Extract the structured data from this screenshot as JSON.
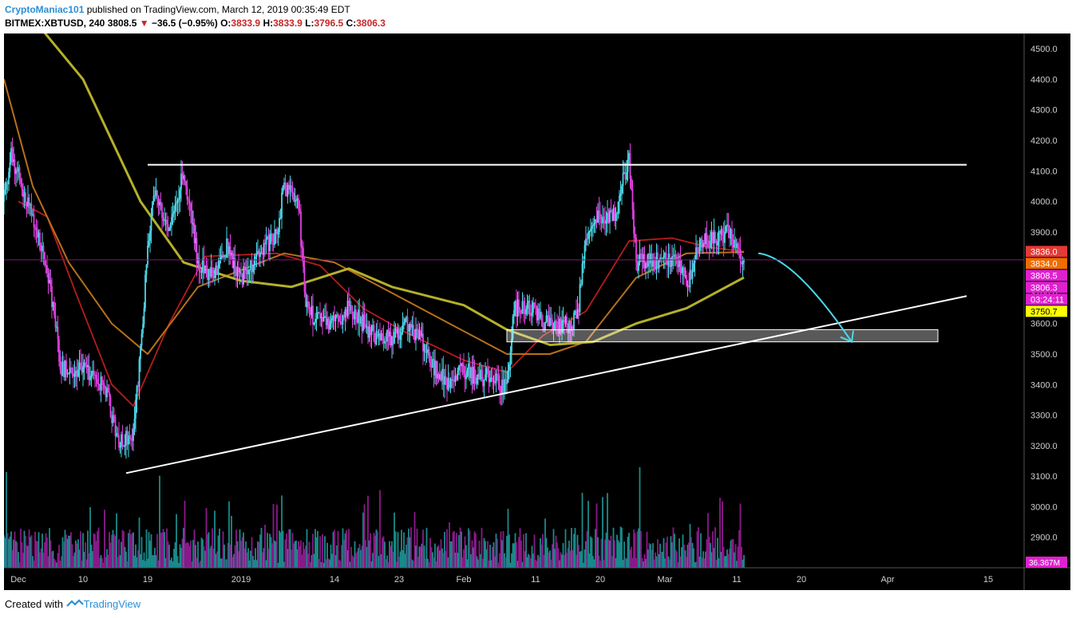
{
  "header": {
    "author": "CryptoManiac101",
    "published": " published on TradingView.com, March 12, 2019 00:35:49 EDT",
    "symbol": "BITMEX:XBTUSD, 240",
    "last": "3808.5",
    "change": "−36.5 (−0.95%)",
    "o_label": "O:",
    "o_value": "3833.9",
    "h_label": "H:",
    "h_value": "3833.9",
    "l_label": "L:",
    "l_value": "3796.5",
    "c_label": "C:",
    "c_value": "3806.3"
  },
  "footer": {
    "created_with": "Created with",
    "brand": "TradingView"
  },
  "colors": {
    "background": "#000000",
    "bull": "#4dd8e8",
    "bear": "#e040e0",
    "vol_bull": "#1a8a8a",
    "vol_bear": "#8a1a8a",
    "ma_fast": "#b71c1c",
    "ma_mid": "#b8701a",
    "ma_slow": "#b5b02a",
    "annotation": "#ffffff",
    "arrow": "#4dd8e8"
  },
  "chart_data": {
    "type": "candlestick",
    "symbol": "BITMEX:XBTUSD",
    "interval": "240",
    "y_ticks": [
      2900,
      3000,
      3100,
      3200,
      3300,
      3400,
      3500,
      3600,
      3700,
      3800,
      3900,
      4000,
      4100,
      4200,
      4300,
      4400,
      4500
    ],
    "ylim": [
      2800,
      4550
    ],
    "x_ticks": [
      "Dec",
      "10",
      "19",
      "2019",
      "14",
      "23",
      "Feb",
      "11",
      "20",
      "Mar",
      "11",
      "20",
      "Apr",
      "15"
    ],
    "x_tick_dates": [
      "2018-12-01",
      "2018-12-10",
      "2018-12-19",
      "2019-01-01",
      "2019-01-14",
      "2019-01-23",
      "2019-02-01",
      "2019-02-11",
      "2019-02-20",
      "2019-03-01",
      "2019-03-11",
      "2019-03-20",
      "2019-04-01",
      "2019-04-15"
    ],
    "price_path": [
      [
        "2018-11-29",
        4000
      ],
      [
        "2018-11-30",
        4150
      ],
      [
        "2018-12-03",
        3950
      ],
      [
        "2018-12-05",
        3780
      ],
      [
        "2018-12-07",
        3450
      ],
      [
        "2018-12-10",
        3450
      ],
      [
        "2018-12-13",
        3400
      ],
      [
        "2018-12-15",
        3200
      ],
      [
        "2018-12-17",
        3250
      ],
      [
        "2018-12-18",
        3500
      ],
      [
        "2018-12-19",
        3850
      ],
      [
        "2018-12-20",
        4050
      ],
      [
        "2018-12-22",
        3900
      ],
      [
        "2018-12-24",
        4100
      ],
      [
        "2018-12-26",
        3800
      ],
      [
        "2018-12-28",
        3750
      ],
      [
        "2018-12-30",
        3850
      ],
      [
        "2019-01-01",
        3750
      ],
      [
        "2019-01-03",
        3800
      ],
      [
        "2019-01-06",
        3900
      ],
      [
        "2019-01-07",
        4050
      ],
      [
        "2019-01-09",
        4000
      ],
      [
        "2019-01-10",
        3650
      ],
      [
        "2019-01-12",
        3600
      ],
      [
        "2019-01-14",
        3600
      ],
      [
        "2019-01-16",
        3650
      ],
      [
        "2019-01-18",
        3600
      ],
      [
        "2019-01-20",
        3550
      ],
      [
        "2019-01-22",
        3550
      ],
      [
        "2019-01-24",
        3600
      ],
      [
        "2019-01-26",
        3550
      ],
      [
        "2019-01-28",
        3450
      ],
      [
        "2019-01-30",
        3400
      ],
      [
        "2019-02-01",
        3450
      ],
      [
        "2019-02-03",
        3420
      ],
      [
        "2019-02-05",
        3430
      ],
      [
        "2019-02-07",
        3380
      ],
      [
        "2019-02-08",
        3650
      ],
      [
        "2019-02-10",
        3660
      ],
      [
        "2019-02-12",
        3600
      ],
      [
        "2019-02-14",
        3590
      ],
      [
        "2019-02-16",
        3600
      ],
      [
        "2019-02-17",
        3660
      ],
      [
        "2019-02-18",
        3900
      ],
      [
        "2019-02-20",
        3950
      ],
      [
        "2019-02-22",
        3950
      ],
      [
        "2019-02-24",
        4150
      ],
      [
        "2019-02-25",
        3800
      ],
      [
        "2019-02-27",
        3800
      ],
      [
        "2019-03-01",
        3820
      ],
      [
        "2019-03-03",
        3800
      ],
      [
        "2019-03-04",
        3720
      ],
      [
        "2019-03-06",
        3870
      ],
      [
        "2019-03-08",
        3880
      ],
      [
        "2019-03-10",
        3900
      ],
      [
        "2019-03-12",
        3808.5
      ]
    ],
    "ma_fast": [
      [
        "2018-12-01",
        4000
      ],
      [
        "2018-12-05",
        3950
      ],
      [
        "2018-12-09",
        3700
      ],
      [
        "2018-12-14",
        3400
      ],
      [
        "2018-12-17",
        3330
      ],
      [
        "2018-12-22",
        3600
      ],
      [
        "2018-12-27",
        3820
      ],
      [
        "2019-01-06",
        3830
      ],
      [
        "2019-01-12",
        3790
      ],
      [
        "2019-01-18",
        3650
      ],
      [
        "2019-01-24",
        3570
      ],
      [
        "2019-02-01",
        3480
      ],
      [
        "2019-02-07",
        3440
      ],
      [
        "2019-02-12",
        3560
      ],
      [
        "2019-02-18",
        3640
      ],
      [
        "2019-02-24",
        3870
      ],
      [
        "2019-03-02",
        3880
      ],
      [
        "2019-03-07",
        3850
      ],
      [
        "2019-03-12",
        3836
      ]
    ],
    "ma_mid": [
      [
        "2018-11-29",
        4400
      ],
      [
        "2018-12-03",
        4050
      ],
      [
        "2018-12-08",
        3800
      ],
      [
        "2018-12-14",
        3600
      ],
      [
        "2018-12-19",
        3500
      ],
      [
        "2018-12-26",
        3720
      ],
      [
        "2019-01-07",
        3830
      ],
      [
        "2019-01-14",
        3800
      ],
      [
        "2019-01-22",
        3700
      ],
      [
        "2019-01-30",
        3600
      ],
      [
        "2019-02-07",
        3500
      ],
      [
        "2019-02-13",
        3500
      ],
      [
        "2019-02-18",
        3540
      ],
      [
        "2019-02-25",
        3750
      ],
      [
        "2019-03-04",
        3830
      ],
      [
        "2019-03-12",
        3834
      ]
    ],
    "ma_slow": [
      [
        "2018-12-03",
        4600
      ],
      [
        "2018-12-10",
        4400
      ],
      [
        "2018-12-18",
        4000
      ],
      [
        "2018-12-24",
        3800
      ],
      [
        "2019-01-01",
        3740
      ],
      [
        "2019-01-08",
        3720
      ],
      [
        "2019-01-16",
        3780
      ],
      [
        "2019-01-22",
        3720
      ],
      [
        "2019-02-01",
        3660
      ],
      [
        "2019-02-07",
        3580
      ],
      [
        "2019-02-13",
        3530
      ],
      [
        "2019-02-19",
        3540
      ],
      [
        "2019-02-25",
        3600
      ],
      [
        "2019-03-04",
        3650
      ],
      [
        "2019-03-12",
        3750.7
      ]
    ],
    "volume_max_m": 210,
    "volume_last": "36.367M",
    "resistance": {
      "from": "2018-12-19",
      "to": "2019-04-12",
      "price": 4120
    },
    "support_trend": {
      "from": [
        "2018-12-16",
        3110
      ],
      "to": [
        "2019-04-12",
        3690
      ]
    },
    "zone": {
      "from": "2019-02-07",
      "to": "2019-04-08",
      "top": 3580,
      "bottom": 3540
    },
    "projection": {
      "from": [
        "2019-03-14",
        3830
      ],
      "to": [
        "2019-03-27",
        3540
      ]
    },
    "price_labels": [
      {
        "text": "3836.0",
        "price": 3836.0,
        "bg": "#e53935",
        "fg": "#ffffff"
      },
      {
        "text": "3834.0",
        "price": 3834.0,
        "bg": "#ef6c00",
        "fg": "#ffffff"
      },
      {
        "text": "3808.5",
        "price": 3808.5,
        "bg": "#e020d0",
        "fg": "#ffffff"
      },
      {
        "text": "3806.3",
        "price": 3806.3,
        "bg": "#e020d0",
        "fg": "#ffffff"
      },
      {
        "text": "03:24:11",
        "price": 3770,
        "bg": "#e020d0",
        "fg": "#ffffff"
      },
      {
        "text": "3750.7",
        "price": 3750.7,
        "bg": "#ffff00",
        "fg": "#000000"
      }
    ]
  }
}
